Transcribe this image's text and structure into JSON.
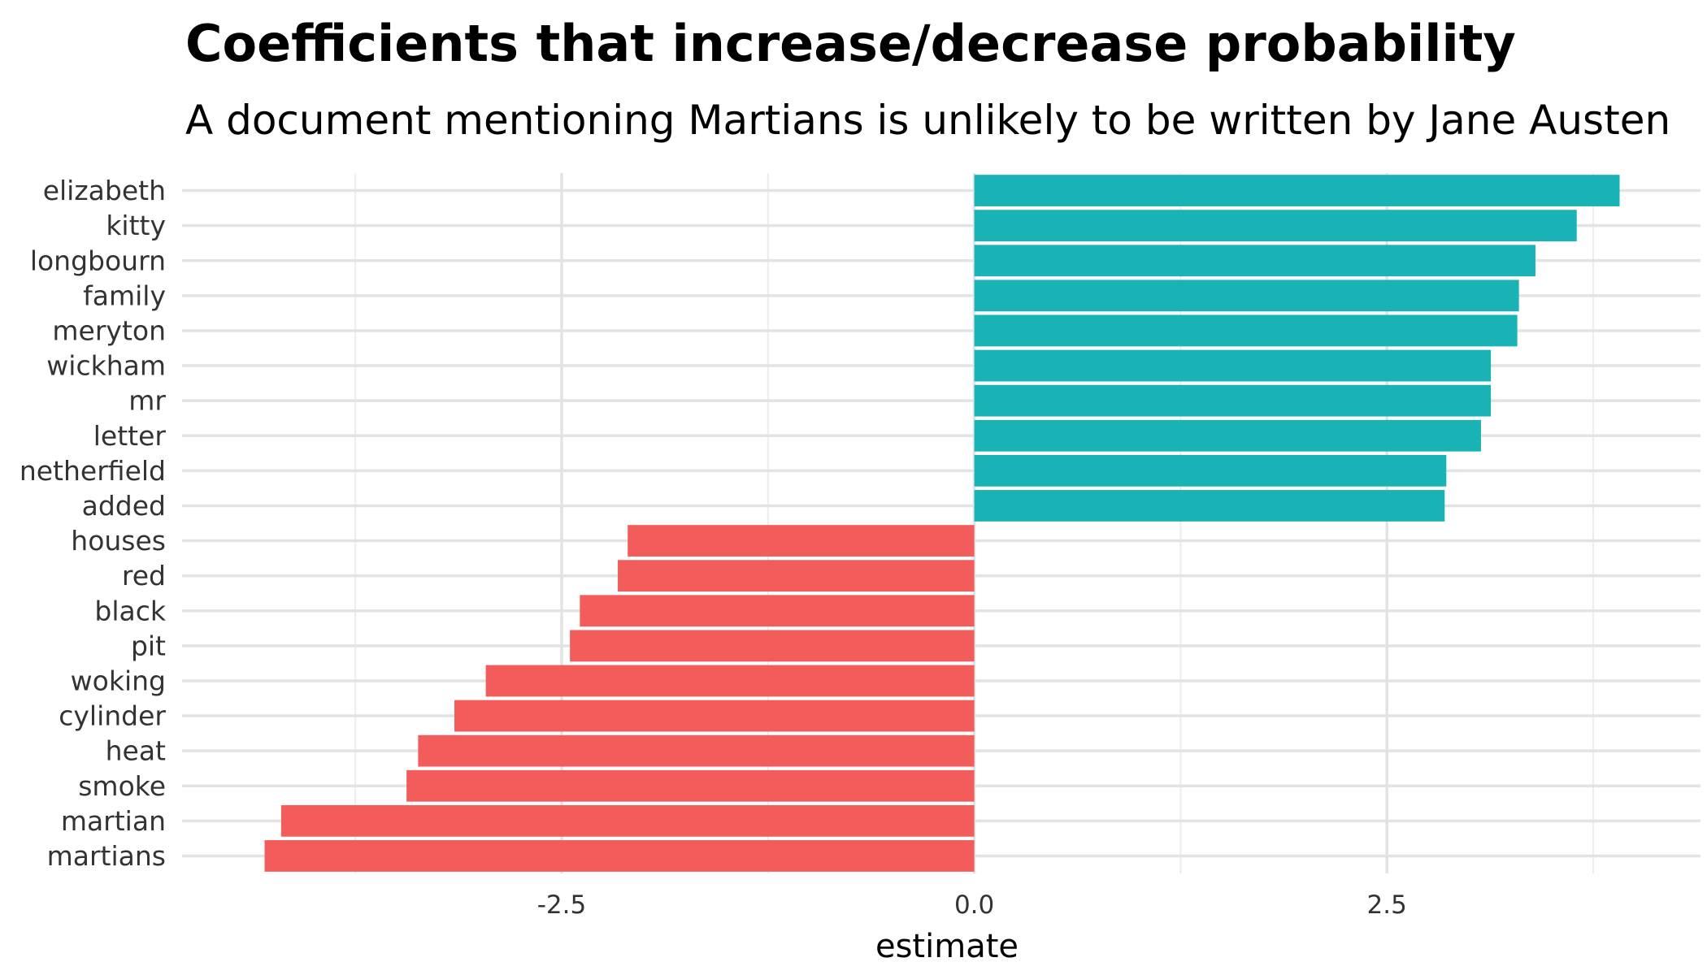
{
  "chart_data": {
    "type": "bar",
    "orientation": "horizontal",
    "title": "Coefficients that increase/decrease probability",
    "subtitle": "A document mentioning Martians is unlikely to be written by Jane Austen",
    "xlabel": "estimate",
    "ylabel": "",
    "xlim": [
      -4.8,
      4.4
    ],
    "xticks": [
      -2.5,
      0.0,
      2.5
    ],
    "xtick_labels": [
      "-2.5",
      "0.0",
      "2.5"
    ],
    "grid": true,
    "legend": "none",
    "colors": {
      "positive": "#1ab3b5",
      "negative": "#f25c5a"
    },
    "categories": [
      "elizabeth",
      "kitty",
      "longbourn",
      "family",
      "meryton",
      "wickham",
      "mr",
      "letter",
      "netherfield",
      "added",
      "houses",
      "red",
      "black",
      "pit",
      "woking",
      "cylinder",
      "heat",
      "smoke",
      "martian",
      "martians"
    ],
    "values": [
      3.91,
      3.65,
      3.4,
      3.3,
      3.29,
      3.13,
      3.13,
      3.07,
      2.86,
      2.85,
      -2.1,
      -2.16,
      -2.39,
      -2.45,
      -2.96,
      -3.15,
      -3.37,
      -3.44,
      -4.2,
      -4.3
    ]
  }
}
